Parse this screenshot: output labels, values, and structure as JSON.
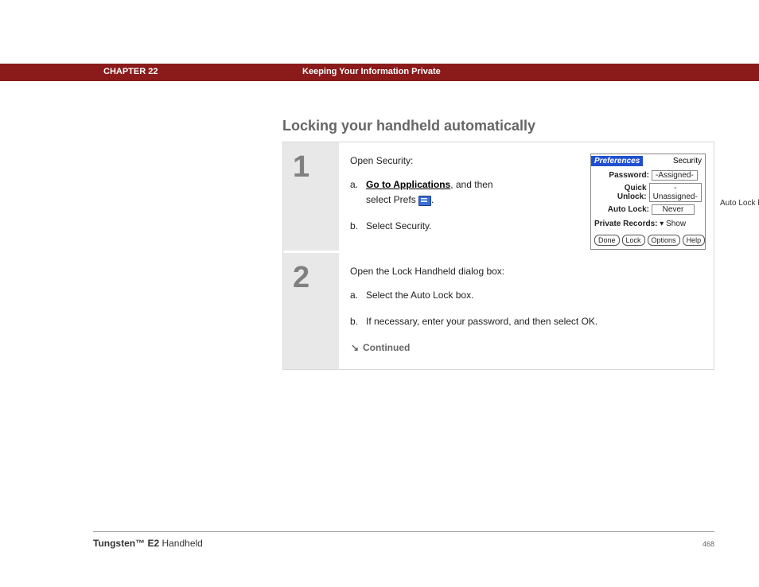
{
  "header": {
    "chapter": "CHAPTER 22",
    "title": "Keeping Your Information Private"
  },
  "section_title": "Locking your handheld automatically",
  "step1": {
    "num": "1",
    "intro": "Open Security:",
    "a_letter": "a.",
    "a_link": "Go to Applications",
    "a_rest1": ", and then select Prefs ",
    "a_rest2": ".",
    "b_letter": "b.",
    "b_text": "Select Security."
  },
  "palm": {
    "pref": "Preferences",
    "sec": "Security",
    "password_label": "Password:",
    "password_val": "-Assigned-",
    "quick_label": "Quick Unlock:",
    "quick_val": "-Unassigned-",
    "auto_label": "Auto Lock:",
    "auto_val": "Never",
    "priv_label": "Private Records:",
    "priv_val": "Show",
    "btn_done": "Done",
    "btn_lock": "Lock",
    "btn_options": "Options",
    "btn_help": "Help"
  },
  "callout": "Auto Lock box",
  "step2": {
    "num": "2",
    "intro": "Open the Lock Handheld dialog box:",
    "a_letter": "a.",
    "a_text": "Select the Auto Lock box.",
    "b_letter": "b.",
    "b_text": "If necessary, enter your password, and then select OK."
  },
  "continued": "Continued",
  "footer": {
    "product_bold": "Tungsten™ E2",
    "product_rest": " Handheld",
    "page": "468"
  }
}
